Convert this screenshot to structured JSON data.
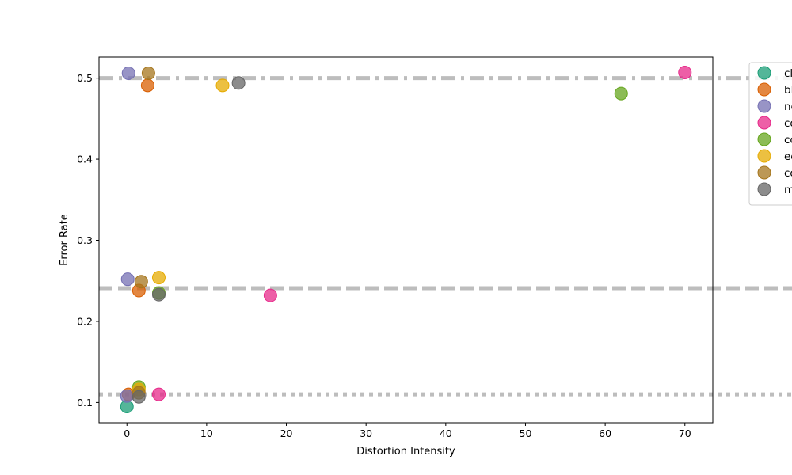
{
  "chart_data": {
    "type": "scatter",
    "title": "",
    "xlabel": "Distortion Intensity",
    "ylabel": "Error Rate",
    "xlim": [
      -3.5,
      73.5
    ],
    "ylim": [
      0.075,
      0.526
    ],
    "xticks": [
      "0",
      "10",
      "20",
      "30",
      "40",
      "50",
      "60",
      "70"
    ],
    "xtick_values": [
      0,
      10,
      20,
      30,
      40,
      50,
      60,
      70
    ],
    "yticks": [
      "0.1",
      "0.2",
      "0.3",
      "0.4",
      "0.5"
    ],
    "ytick_values": [
      0.1,
      0.2,
      0.3,
      0.4,
      0.5
    ],
    "grid": false,
    "legend_placement": "outside-top-right",
    "reference_lines": [
      {
        "y": 0.5,
        "style": "dashdot",
        "color": "#bdbdbd"
      },
      {
        "y": 0.241,
        "style": "dashed",
        "color": "#bdbdbd"
      },
      {
        "y": 0.11,
        "style": "dotted",
        "color": "#bdbdbd"
      }
    ],
    "series": [
      {
        "name": "cl",
        "color": "#1b9e77",
        "points": [
          [
            0,
            0.095
          ]
        ]
      },
      {
        "name": "bl",
        "color": "#d95f02",
        "points": [
          [
            2.6,
            0.491
          ],
          [
            1.5,
            0.238
          ],
          [
            0.2,
            0.11
          ]
        ]
      },
      {
        "name": "no",
        "color": "#7570b3",
        "points": [
          [
            0.2,
            0.506
          ],
          [
            0.1,
            0.252
          ],
          [
            0,
            0.108
          ]
        ]
      },
      {
        "name": "co",
        "color": "#e7298a",
        "points": [
          [
            70,
            0.507
          ],
          [
            18,
            0.232
          ],
          [
            4,
            0.11
          ]
        ]
      },
      {
        "name": "co",
        "color": "#66a61e",
        "points": [
          [
            62,
            0.481
          ],
          [
            4,
            0.235
          ],
          [
            1.5,
            0.119
          ]
        ]
      },
      {
        "name": "ec",
        "color": "#e6ab02",
        "points": [
          [
            12,
            0.491
          ],
          [
            4,
            0.254
          ],
          [
            1.5,
            0.116
          ]
        ]
      },
      {
        "name": "co",
        "color": "#a6761d",
        "points": [
          [
            2.7,
            0.506
          ],
          [
            1.8,
            0.249
          ],
          [
            1.5,
            0.112
          ]
        ]
      },
      {
        "name": "m",
        "color": "#666666",
        "points": [
          [
            14,
            0.494
          ],
          [
            4,
            0.233
          ],
          [
            1.5,
            0.107
          ]
        ]
      }
    ]
  }
}
